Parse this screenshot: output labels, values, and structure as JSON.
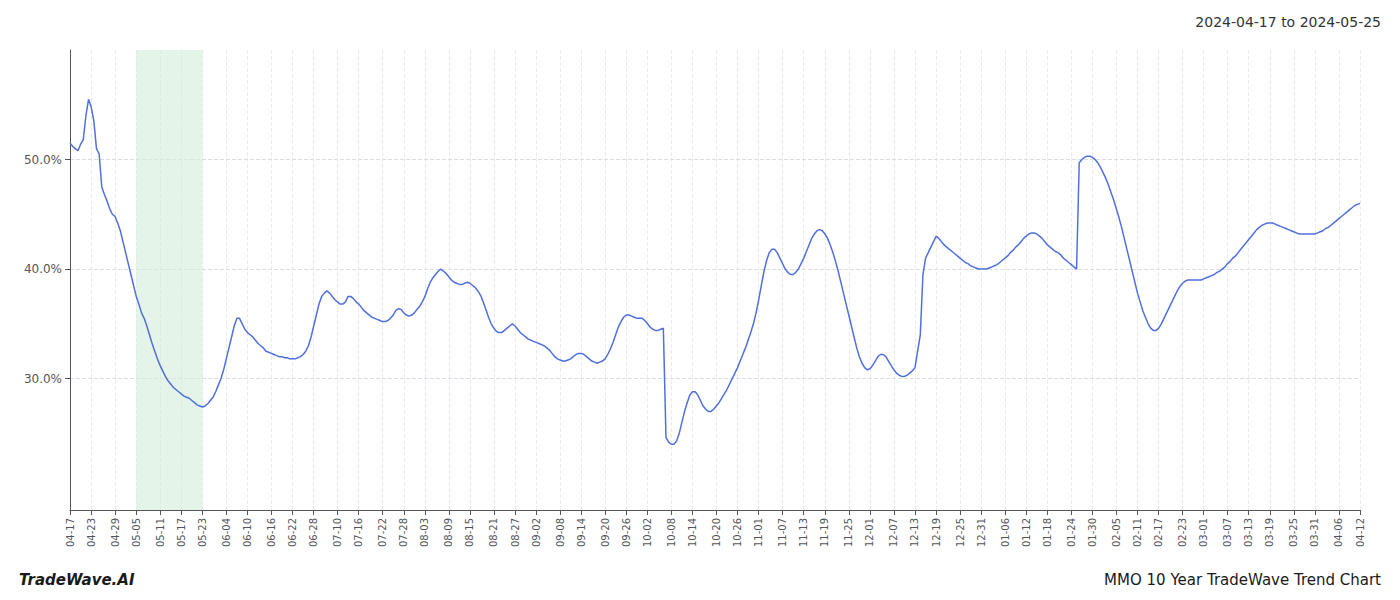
{
  "chart_data": {
    "type": "line",
    "title": "2024-04-17 to 2024-05-25",
    "annotations": [
      "TradeWave.AI",
      "MMO 10 Year TradeWave Trend Chart"
    ],
    "categories": [
      "04-17",
      null,
      null,
      null,
      null,
      null,
      null,
      null,
      "04-23",
      null,
      null,
      null,
      null,
      null,
      null,
      null,
      null,
      "04-29",
      null,
      null,
      null,
      null,
      null,
      null,
      null,
      "05-05",
      null,
      null,
      null,
      null,
      null,
      null,
      null,
      null,
      "05-11",
      null,
      null,
      null,
      null,
      null,
      null,
      null,
      "05-17",
      null,
      null,
      null,
      null,
      null,
      null,
      null,
      "05-23",
      null,
      null,
      null,
      null,
      null,
      null,
      null,
      null,
      "06-04",
      null,
      null,
      null,
      null,
      null,
      null,
      null,
      "06-10",
      null,
      null,
      null,
      null,
      null,
      null,
      null,
      null,
      "06-16",
      null,
      null,
      null,
      null,
      null,
      null,
      null,
      "06-22",
      null,
      null,
      null,
      null,
      null,
      null,
      null,
      "06-28",
      null,
      null,
      null,
      null,
      null,
      null,
      null,
      null,
      "07-10",
      null,
      null,
      null,
      null,
      null,
      null,
      null,
      "07-16",
      null,
      null,
      null,
      null,
      null,
      null,
      null,
      null,
      "07-22",
      null,
      null,
      null,
      null,
      null,
      null,
      null,
      "07-28",
      null,
      null,
      null,
      null,
      null,
      null,
      null,
      "08-03",
      null,
      null,
      null,
      null,
      null,
      null,
      null,
      null,
      "08-09",
      null,
      null,
      null,
      null,
      null,
      null,
      null,
      "08-15",
      null,
      null,
      null,
      null,
      null,
      null,
      null,
      null,
      "08-21",
      null,
      null,
      null,
      null,
      null,
      null,
      null,
      "08-27",
      null,
      null,
      null,
      null,
      null,
      null,
      null,
      "09-02",
      null,
      null,
      null,
      null,
      null,
      null,
      null,
      null,
      "09-08",
      null,
      null,
      null,
      null,
      null,
      null,
      null,
      "09-14",
      null,
      null,
      null,
      null,
      null,
      null,
      null,
      null,
      "09-20",
      null,
      null,
      null,
      null,
      null,
      null,
      null,
      "09-26",
      null,
      null,
      null,
      null,
      null,
      null,
      null,
      "10-02",
      null,
      null,
      null,
      null,
      null,
      null,
      null,
      null,
      "10-08",
      null,
      null,
      null,
      null,
      null,
      null,
      null,
      "10-14",
      null,
      null,
      null,
      null,
      null,
      null,
      null,
      null,
      "10-20",
      null,
      null,
      null,
      null,
      null,
      null,
      null,
      "10-26",
      null,
      null,
      null,
      null,
      null,
      null,
      null,
      "11-01",
      null,
      null,
      null,
      null,
      null,
      null,
      null,
      null,
      "11-07",
      null,
      null,
      null,
      null,
      null,
      null,
      null,
      "11-13",
      null,
      null,
      null,
      null,
      null,
      null,
      null,
      "11-19",
      null,
      null,
      null,
      null,
      null,
      null,
      null,
      null,
      "11-25",
      null,
      null,
      null,
      null,
      null,
      null,
      null,
      "12-01",
      null,
      null,
      null,
      null,
      null,
      null,
      null,
      null,
      "12-07",
      null,
      null,
      null,
      null,
      null,
      null,
      null,
      "12-13",
      null,
      null,
      null,
      null,
      null,
      null,
      null,
      "12-19",
      null,
      null,
      null,
      null,
      null,
      null,
      null,
      null,
      "12-25",
      null,
      null,
      null,
      null,
      null,
      null,
      null,
      "12-31",
      null,
      null,
      null,
      null,
      null,
      null,
      null,
      null,
      "01-06",
      null,
      null,
      null,
      null,
      null,
      null,
      null,
      "01-12",
      null,
      null,
      null,
      null,
      null,
      null,
      null,
      "01-18",
      null,
      null,
      null,
      null,
      null,
      null,
      null,
      null,
      "01-24",
      null,
      null,
      null,
      null,
      null,
      null,
      null,
      "01-30",
      null,
      null,
      null,
      null,
      null,
      null,
      null,
      null,
      "02-05",
      null,
      null,
      null,
      null,
      null,
      null,
      null,
      "02-11",
      null,
      null,
      null,
      null,
      null,
      null,
      null,
      "02-17",
      null,
      null,
      null,
      null,
      null,
      null,
      null,
      null,
      "02-23",
      null,
      null,
      null,
      null,
      null,
      null,
      null,
      "03-01",
      null,
      null,
      null,
      null,
      null,
      null,
      null,
      null,
      "03-07",
      null,
      null,
      null,
      null,
      null,
      null,
      null,
      "03-13",
      null,
      null,
      null,
      null,
      null,
      null,
      null,
      "03-19",
      null,
      null,
      null,
      null,
      null,
      null,
      null,
      null,
      "03-25",
      null,
      null,
      null,
      null,
      null,
      null,
      null,
      "03-31",
      null,
      null,
      null,
      null,
      null,
      null,
      null,
      null,
      "04-06",
      null,
      null,
      null,
      null,
      null,
      null,
      null,
      "04-12"
    ],
    "values": [
      0.515,
      0.512,
      0.51,
      0.508,
      0.514,
      0.518,
      0.54,
      0.555,
      0.548,
      0.535,
      0.51,
      0.505,
      0.475,
      0.468,
      0.462,
      0.455,
      0.45,
      0.448,
      0.442,
      0.435,
      0.425,
      0.415,
      0.405,
      0.395,
      0.385,
      0.375,
      0.368,
      0.36,
      0.355,
      0.348,
      0.34,
      0.332,
      0.325,
      0.318,
      0.312,
      0.307,
      0.302,
      0.298,
      0.295,
      0.292,
      0.29,
      0.288,
      0.286,
      0.284,
      0.283,
      0.282,
      0.28,
      0.278,
      0.276,
      0.275,
      0.274,
      0.275,
      0.277,
      0.28,
      0.283,
      0.288,
      0.294,
      0.3,
      0.308,
      0.318,
      0.328,
      0.338,
      0.348,
      0.355,
      0.355,
      0.35,
      0.345,
      0.342,
      0.34,
      0.338,
      0.335,
      0.332,
      0.33,
      0.328,
      0.325,
      0.324,
      0.323,
      0.322,
      0.321,
      0.32,
      0.32,
      0.319,
      0.319,
      0.318,
      0.318,
      0.318,
      0.319,
      0.32,
      0.322,
      0.325,
      0.33,
      0.338,
      0.348,
      0.358,
      0.368,
      0.375,
      0.378,
      0.38,
      0.378,
      0.375,
      0.372,
      0.37,
      0.368,
      0.368,
      0.37,
      0.375,
      0.375,
      0.373,
      0.37,
      0.368,
      0.365,
      0.362,
      0.36,
      0.358,
      0.356,
      0.355,
      0.354,
      0.353,
      0.352,
      0.352,
      0.353,
      0.355,
      0.358,
      0.362,
      0.364,
      0.363,
      0.36,
      0.358,
      0.357,
      0.358,
      0.36,
      0.363,
      0.366,
      0.37,
      0.375,
      0.382,
      0.388,
      0.392,
      0.395,
      0.398,
      0.4,
      0.398,
      0.396,
      0.393,
      0.39,
      0.388,
      0.387,
      0.386,
      0.386,
      0.387,
      0.388,
      0.387,
      0.385,
      0.383,
      0.38,
      0.376,
      0.37,
      0.363,
      0.356,
      0.35,
      0.346,
      0.343,
      0.342,
      0.342,
      0.344,
      0.346,
      0.348,
      0.35,
      0.348,
      0.345,
      0.342,
      0.34,
      0.338,
      0.336,
      0.335,
      0.334,
      0.333,
      0.332,
      0.331,
      0.33,
      0.328,
      0.326,
      0.323,
      0.32,
      0.318,
      0.317,
      0.316,
      0.316,
      0.317,
      0.318,
      0.32,
      0.322,
      0.323,
      0.323,
      0.322,
      0.32,
      0.318,
      0.316,
      0.315,
      0.314,
      0.315,
      0.316,
      0.318,
      0.322,
      0.327,
      0.333,
      0.34,
      0.347,
      0.352,
      0.356,
      0.358,
      0.358,
      0.357,
      0.356,
      0.355,
      0.355,
      0.355,
      0.353,
      0.35,
      0.347,
      0.345,
      0.344,
      0.344,
      0.345,
      0.346,
      0.246,
      0.242,
      0.24,
      0.24,
      0.243,
      0.25,
      0.26,
      0.27,
      0.278,
      0.285,
      0.288,
      0.288,
      0.285,
      0.28,
      0.275,
      0.272,
      0.27,
      0.27,
      0.272,
      0.275,
      0.278,
      0.282,
      0.286,
      0.29,
      0.295,
      0.3,
      0.305,
      0.31,
      0.316,
      0.322,
      0.328,
      0.335,
      0.342,
      0.35,
      0.36,
      0.372,
      0.385,
      0.398,
      0.408,
      0.415,
      0.418,
      0.418,
      0.415,
      0.41,
      0.405,
      0.4,
      0.397,
      0.395,
      0.395,
      0.397,
      0.4,
      0.405,
      0.41,
      0.416,
      0.422,
      0.428,
      0.432,
      0.435,
      0.436,
      0.435,
      0.432,
      0.428,
      0.422,
      0.415,
      0.407,
      0.398,
      0.388,
      0.378,
      0.368,
      0.358,
      0.348,
      0.338,
      0.328,
      0.32,
      0.314,
      0.31,
      0.308,
      0.309,
      0.312,
      0.316,
      0.32,
      0.322,
      0.322,
      0.32,
      0.316,
      0.312,
      0.308,
      0.305,
      0.303,
      0.302,
      0.302,
      0.303,
      0.305,
      0.307,
      0.31,
      0.325,
      0.34,
      0.395,
      0.41,
      0.415,
      0.42,
      0.425,
      0.43,
      0.428,
      0.425,
      0.422,
      0.42,
      0.418,
      0.416,
      0.414,
      0.412,
      0.41,
      0.408,
      0.406,
      0.405,
      0.403,
      0.402,
      0.401,
      0.4,
      0.4,
      0.4,
      0.4,
      0.401,
      0.402,
      0.403,
      0.404,
      0.406,
      0.408,
      0.41,
      0.412,
      0.415,
      0.417,
      0.42,
      0.422,
      0.425,
      0.428,
      0.43,
      0.432,
      0.433,
      0.433,
      0.432,
      0.43,
      0.428,
      0.425,
      0.422,
      0.42,
      0.418,
      0.416,
      0.415,
      0.413,
      0.41,
      0.408,
      0.406,
      0.404,
      0.402,
      0.4,
      0.497,
      0.5,
      0.502,
      0.503,
      0.503,
      0.502,
      0.5,
      0.497,
      0.493,
      0.488,
      0.483,
      0.477,
      0.47,
      0.463,
      0.455,
      0.447,
      0.438,
      0.428,
      0.418,
      0.408,
      0.398,
      0.388,
      0.378,
      0.37,
      0.362,
      0.356,
      0.35,
      0.346,
      0.344,
      0.344,
      0.346,
      0.35,
      0.355,
      0.36,
      0.365,
      0.37,
      0.375,
      0.38,
      0.384,
      0.387,
      0.389,
      0.39,
      0.39,
      0.39,
      0.39,
      0.39,
      0.39,
      0.391,
      0.392,
      0.393,
      0.394,
      0.395,
      0.397,
      0.398,
      0.4,
      0.402,
      0.405,
      0.407,
      0.41,
      0.412,
      0.415,
      0.418,
      0.421,
      0.424,
      0.427,
      0.43,
      0.433,
      0.436,
      0.438,
      0.44,
      0.441,
      0.442,
      0.442,
      0.442,
      0.441,
      0.44,
      0.439,
      0.438,
      0.437,
      0.436,
      0.435,
      0.434,
      0.433,
      0.432,
      0.432,
      0.432,
      0.432,
      0.432,
      0.432,
      0.432,
      0.433,
      0.434,
      0.435,
      0.437,
      0.438,
      0.44,
      0.442,
      0.444,
      0.446,
      0.448,
      0.45,
      0.452,
      0.454,
      0.456,
      0.458,
      0.459,
      0.46
    ],
    "shade": {
      "from": "05-05",
      "to": "05-23",
      "color": "#d4edda"
    },
    "ylim": [
      0.18,
      0.6
    ],
    "yticks": [
      {
        "value": 0.3,
        "label": "30.0%"
      },
      {
        "value": 0.4,
        "label": "40.0%"
      },
      {
        "value": 0.5,
        "label": "50.0%"
      }
    ],
    "grid": true
  }
}
